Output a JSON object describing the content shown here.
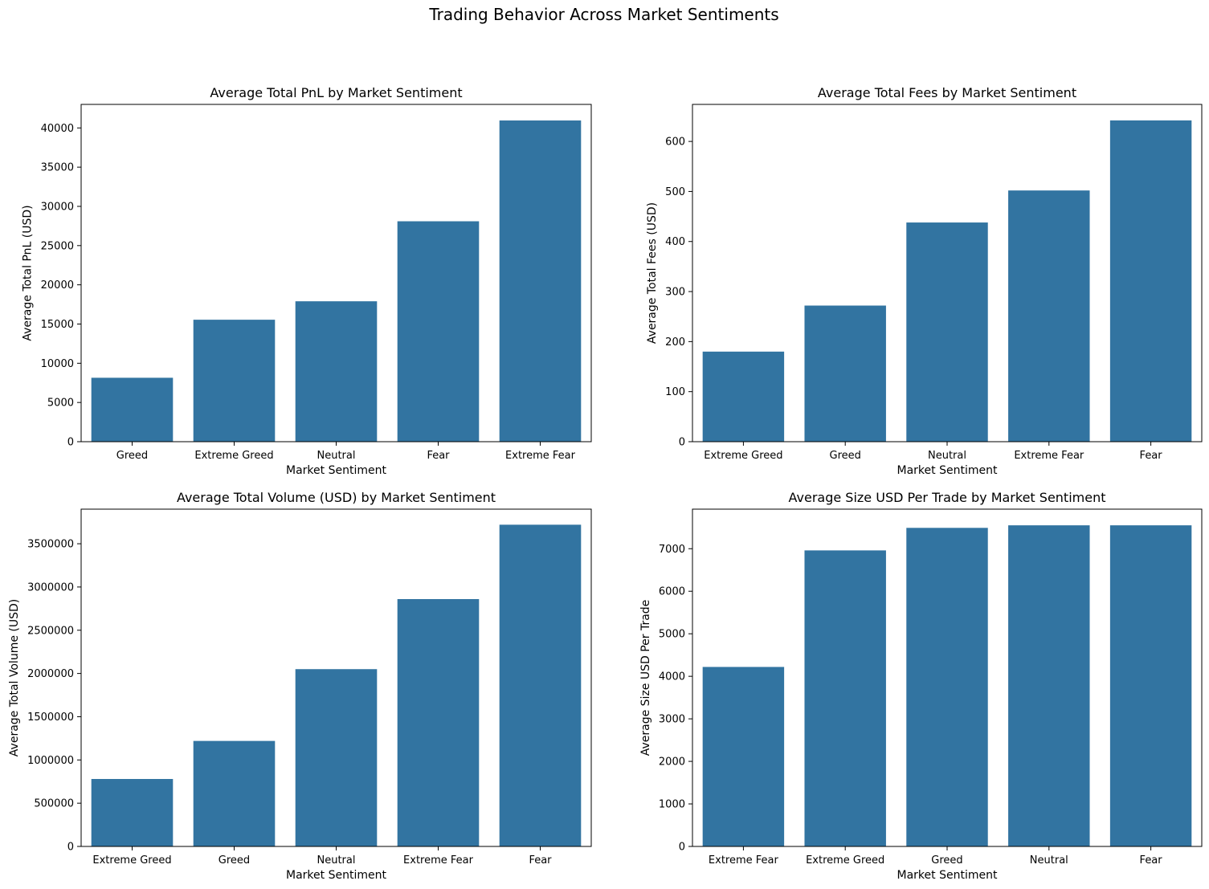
{
  "figure": {
    "suptitle": "Trading Behavior Across Market Sentiments"
  },
  "colors": {
    "bar": "#3274a1",
    "axes": "#000000",
    "background": "#ffffff"
  },
  "chart_data": [
    {
      "type": "bar",
      "title": "Average Total PnL by Market Sentiment",
      "xlabel": "Market Sentiment",
      "ylabel": "Average Total PnL (USD)",
      "categories": [
        "Greed",
        "Extreme Greed",
        "Neutral",
        "Fear",
        "Extreme Fear"
      ],
      "values": [
        8150,
        15550,
        17900,
        28100,
        40950
      ],
      "ylim": [
        0,
        43000
      ],
      "yticks": [
        0,
        5000,
        10000,
        15000,
        20000,
        25000,
        30000,
        35000,
        40000
      ],
      "grid": false,
      "legend": "none"
    },
    {
      "type": "bar",
      "title": "Average Total Fees by Market Sentiment",
      "xlabel": "Market Sentiment",
      "ylabel": "Average Total Fees (USD)",
      "categories": [
        "Extreme Greed",
        "Greed",
        "Neutral",
        "Extreme Fear",
        "Fear"
      ],
      "values": [
        180,
        272,
        438,
        502,
        642
      ],
      "ylim": [
        0,
        674
      ],
      "yticks": [
        0,
        100,
        200,
        300,
        400,
        500,
        600
      ],
      "grid": false,
      "legend": "none"
    },
    {
      "type": "bar",
      "title": "Average Total Volume (USD) by Market Sentiment",
      "xlabel": "Market Sentiment",
      "ylabel": "Average Total Volume (USD)",
      "categories": [
        "Extreme Greed",
        "Greed",
        "Neutral",
        "Extreme Fear",
        "Fear"
      ],
      "values": [
        780000,
        1220000,
        2050000,
        2860000,
        3720000
      ],
      "ylim": [
        0,
        3900000
      ],
      "yticks": [
        0,
        500000,
        1000000,
        1500000,
        2000000,
        2500000,
        3000000,
        3500000
      ],
      "grid": false,
      "legend": "none"
    },
    {
      "type": "bar",
      "title": "Average Size USD Per Trade by Market Sentiment",
      "xlabel": "Market Sentiment",
      "ylabel": "Average Size USD Per Trade",
      "categories": [
        "Extreme Fear",
        "Extreme Greed",
        "Greed",
        "Neutral",
        "Fear"
      ],
      "values": [
        4220,
        6960,
        7490,
        7550,
        7550
      ],
      "ylim": [
        0,
        7930
      ],
      "yticks": [
        0,
        1000,
        2000,
        3000,
        4000,
        5000,
        6000,
        7000
      ],
      "grid": false,
      "legend": "none"
    }
  ]
}
